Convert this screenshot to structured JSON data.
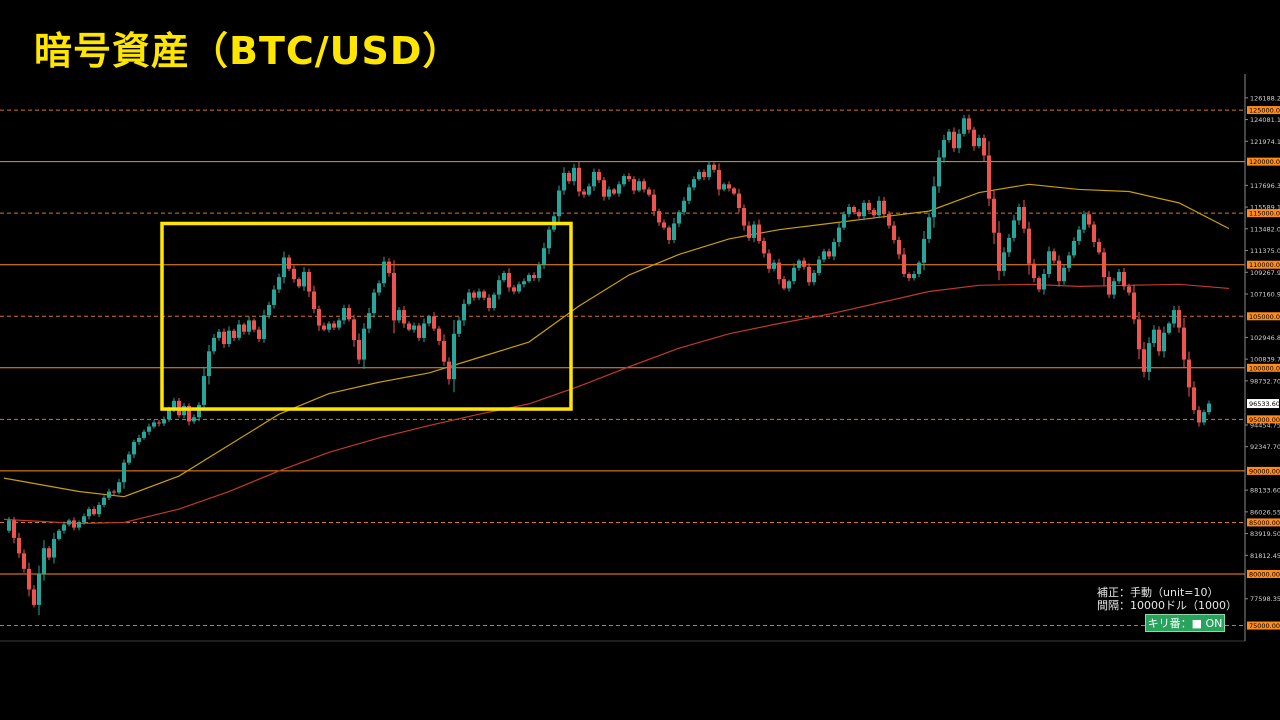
{
  "title": "暗号資産（BTC/USD）",
  "info": {
    "line1": "補正：手動（unit=10）",
    "line2": "間隔：10000ドル（1000）",
    "toggle_label": "キリ番：■ ON"
  },
  "colors": {
    "background": "#000000",
    "bull": "#26a69a",
    "bear": "#ef5350",
    "round_line": "#ff8c1a",
    "ma_fast": "#c8a000",
    "ma_slow": "#c0392b",
    "highlight_box": "#ffe600",
    "toggle_bg": "#27a35b"
  },
  "chart_data": {
    "type": "candlestick",
    "ylim": [
      73500,
      128500
    ],
    "y_ticks": [
      126188.2,
      124081.15,
      121974.1,
      117696.35,
      115589.1,
      113482.05,
      111375.0,
      109267.95,
      107160.9,
      102946.8,
      100839.75,
      98732.7,
      94454.75,
      92347.7,
      88133.6,
      86026.55,
      83919.5,
      81812.45,
      77598.35
    ],
    "round_levels": [
      {
        "value": 125000,
        "style": "dashed",
        "label": "125000.00"
      },
      {
        "value": 120000,
        "style": "solid",
        "label": "120000.00"
      },
      {
        "value": 115000,
        "style": "dashed",
        "label": "115000.00"
      },
      {
        "value": 110000,
        "style": "solid",
        "label": "110000.00"
      },
      {
        "value": 105000,
        "style": "dashed",
        "label": "105000.00"
      },
      {
        "value": 100000,
        "style": "solid",
        "label": "100000.00"
      },
      {
        "value": 95000,
        "style": "dashed",
        "label": "95000.00"
      },
      {
        "value": 90000,
        "style": "solid",
        "label": "90000.00"
      },
      {
        "value": 85000,
        "style": "dashed",
        "label": "85000.00"
      },
      {
        "value": 80000,
        "style": "solid",
        "label": "80000.00"
      },
      {
        "value": 75000,
        "style": "dashed",
        "label": "75000.00"
      }
    ],
    "current_price": {
      "value": 96533.6,
      "label": "96533.60"
    },
    "highlight_range": {
      "x_start": 32,
      "x_end": 113,
      "y_low": 96000,
      "y_high": 114000
    },
    "close": [
      84200,
      85200,
      83500,
      82000,
      80500,
      78500,
      77000,
      80000,
      82500,
      81600,
      83400,
      84200,
      84800,
      85200,
      84500,
      85000,
      85600,
      86300,
      85800,
      86700,
      87400,
      88000,
      87900,
      88900,
      90800,
      91600,
      92800,
      93200,
      93800,
      94300,
      94700,
      94600,
      95000,
      96000,
      96800,
      95400,
      96300,
      94800,
      95200,
      96400,
      99200,
      101600,
      102900,
      103500,
      102300,
      103600,
      102900,
      104200,
      103500,
      104600,
      103700,
      102800,
      105100,
      106100,
      107600,
      108800,
      110700,
      109600,
      108600,
      107900,
      109300,
      107400,
      105700,
      104100,
      103700,
      104300,
      103900,
      104600,
      105800,
      104700,
      102700,
      100800,
      103800,
      105300,
      107300,
      108200,
      110300,
      109200,
      104600,
      105600,
      104300,
      103700,
      104100,
      102900,
      104300,
      105000,
      103800,
      102600,
      100600,
      98900,
      103300,
      104600,
      106200,
      107300,
      106800,
      107400,
      106800,
      105800,
      107100,
      108500,
      109200,
      107800,
      107400,
      108100,
      108400,
      109000,
      108700,
      110000,
      111600,
      113400,
      114700,
      117200,
      118900,
      118100,
      119400,
      117100,
      116800,
      117600,
      119000,
      118200,
      116600,
      117300,
      116900,
      117800,
      118600,
      118300,
      117200,
      118100,
      117300,
      116800,
      115200,
      114100,
      113600,
      112400,
      114000,
      115100,
      116200,
      117500,
      118300,
      119000,
      118500,
      119700,
      119200,
      117300,
      117800,
      117400,
      116900,
      115500,
      113800,
      112600,
      113900,
      112300,
      111100,
      109600,
      110200,
      108600,
      107700,
      108400,
      109700,
      110400,
      109800,
      108300,
      109200,
      110500,
      111300,
      110800,
      112200,
      113600,
      114900,
      115600,
      115100,
      114700,
      116000,
      115300,
      114800,
      116200,
      114900,
      113800,
      112400,
      111000,
      109100,
      108700,
      109100,
      110200,
      112500,
      114600,
      117600,
      120400,
      122100,
      122900,
      121300,
      122700,
      124200,
      123100,
      121500,
      122300,
      120600,
      116400,
      113100,
      109400,
      111200,
      112600,
      114300,
      115600,
      113500,
      110100,
      108700,
      107600,
      109100,
      111300,
      110400,
      108400,
      109700,
      110900,
      112300,
      113400,
      114900,
      113900,
      112200,
      111200,
      108800,
      107100,
      108400,
      109300,
      107900,
      107300,
      104700,
      101800,
      99600,
      102400,
      103700,
      101600,
      103400,
      104300,
      105600,
      103900,
      100800,
      98100,
      95900,
      94700,
      95700,
      96533.6
    ],
    "ma_fast": [
      [
        0,
        89300
      ],
      [
        15,
        88000
      ],
      [
        24,
        87500
      ],
      [
        35,
        89500
      ],
      [
        45,
        92500
      ],
      [
        55,
        95500
      ],
      [
        65,
        97500
      ],
      [
        75,
        98600
      ],
      [
        85,
        99500
      ],
      [
        95,
        101000
      ],
      [
        105,
        102500
      ],
      [
        115,
        106000
      ],
      [
        125,
        109000
      ],
      [
        135,
        111000
      ],
      [
        145,
        112500
      ],
      [
        155,
        113400
      ],
      [
        165,
        114000
      ],
      [
        175,
        114600
      ],
      [
        185,
        115200
      ],
      [
        195,
        117000
      ],
      [
        205,
        117800
      ],
      [
        215,
        117300
      ],
      [
        225,
        117100
      ],
      [
        235,
        116000
      ],
      [
        245,
        113500
      ]
    ],
    "ma_slow": [
      [
        0,
        85300
      ],
      [
        15,
        84900
      ],
      [
        24,
        85000
      ],
      [
        35,
        86300
      ],
      [
        45,
        88000
      ],
      [
        55,
        90000
      ],
      [
        65,
        91800
      ],
      [
        75,
        93200
      ],
      [
        85,
        94400
      ],
      [
        95,
        95500
      ],
      [
        105,
        96500
      ],
      [
        115,
        98200
      ],
      [
        125,
        100100
      ],
      [
        135,
        101900
      ],
      [
        145,
        103300
      ],
      [
        155,
        104300
      ],
      [
        165,
        105200
      ],
      [
        175,
        106300
      ],
      [
        185,
        107400
      ],
      [
        195,
        108000
      ],
      [
        205,
        108100
      ],
      [
        215,
        107900
      ],
      [
        225,
        108000
      ],
      [
        235,
        108100
      ],
      [
        245,
        107700
      ]
    ]
  }
}
